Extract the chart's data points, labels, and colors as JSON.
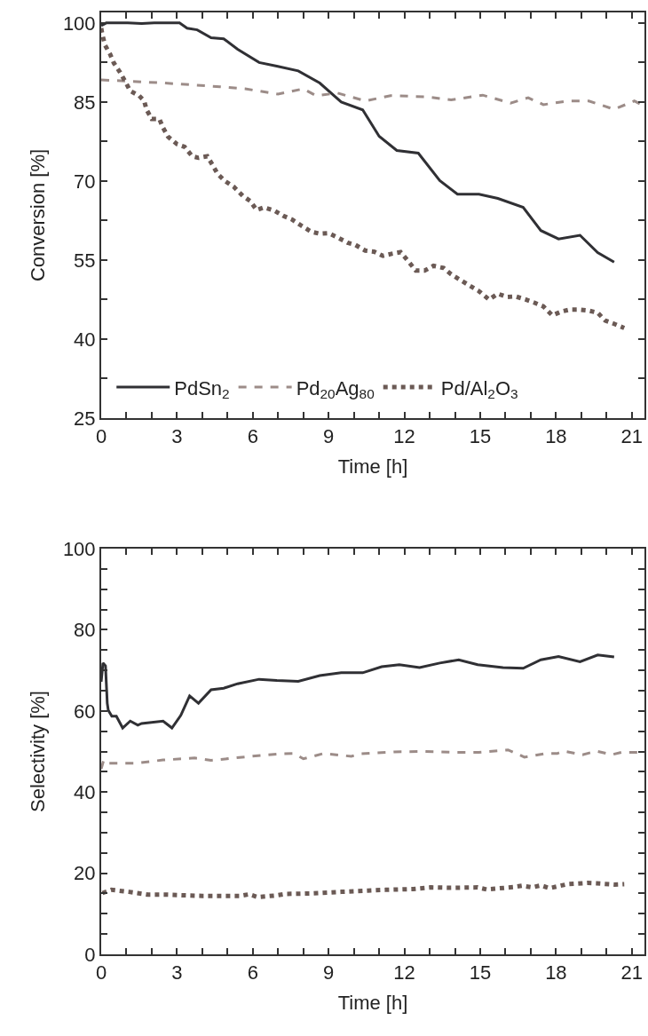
{
  "chart_data": [
    {
      "type": "line",
      "xlabel": "Time [h]",
      "ylabel": "Conversion [%]",
      "xlim": [
        0,
        21.5
      ],
      "ylim": [
        25,
        102
      ],
      "xticks": [
        0,
        {
          "value": 1,
          "label": null
        },
        {
          "value": 2,
          "label": null
        },
        3,
        {
          "value": 4,
          "label": null
        },
        {
          "value": 5,
          "label": null
        },
        6,
        {
          "value": 7,
          "label": null
        },
        {
          "value": 8,
          "label": null
        },
        9,
        {
          "value": 10,
          "label": null
        },
        {
          "value": 11,
          "label": null
        },
        12,
        {
          "value": 13,
          "label": null
        },
        {
          "value": 14,
          "label": null
        },
        15,
        {
          "value": 16,
          "label": null
        },
        {
          "value": 17,
          "label": null
        },
        18,
        {
          "value": 19,
          "label": null
        },
        {
          "value": 20,
          "label": null
        },
        21
      ],
      "yticks": [
        25,
        {
          "value": 32.5,
          "label": null
        },
        40,
        {
          "value": 47.5,
          "label": null
        },
        55,
        {
          "value": 62.5,
          "label": null
        },
        70,
        {
          "value": 77.5,
          "label": null
        },
        85,
        {
          "value": 92.5,
          "label": null
        },
        100
      ],
      "grid": false,
      "legend": "bottom",
      "marker": "none",
      "series": [
        {
          "name": "PdSn$_{2}$",
          "color": "#303034",
          "line_style": "solid",
          "x": [
            0,
            0.2,
            1.05,
            1.6,
            2.1,
            3.1,
            3.4,
            3.8,
            4.35,
            4.85,
            5.4,
            6.25,
            6.95,
            7.8,
            8.65,
            9.5,
            10.35,
            11.0,
            11.7,
            12.55,
            13.4,
            14.1,
            14.95,
            15.7,
            16.7,
            17.4,
            18.1,
            18.95,
            19.65,
            20.3
          ],
          "values": [
            99.5,
            100,
            100,
            99.9,
            100,
            100,
            99,
            98.7,
            97.2,
            97,
            95,
            92.5,
            91.8,
            90.9,
            88.6,
            85,
            83.5,
            78.5,
            75.8,
            75.3,
            70.1,
            67.5,
            67.5,
            66.7,
            65,
            60.6,
            59,
            59.7,
            56.4,
            54.6
          ]
        },
        {
          "name": "Pd$_{20}$Ag$_{80}$",
          "color": "#9c8c88",
          "line_style": "dashed",
          "x": [
            0,
            2.5,
            4.7,
            5.7,
            7,
            8,
            8.5,
            9.35,
            10.45,
            11.45,
            12.85,
            13.85,
            15.1,
            16.2,
            16.9,
            17.5,
            18.5,
            19.3,
            20.3,
            21.1,
            21.5
          ],
          "values": [
            89.2,
            88.6,
            87.9,
            87.5,
            86.5,
            87.5,
            86.2,
            86.7,
            85.2,
            86.2,
            86,
            85.4,
            86.3,
            84.8,
            85.8,
            84.5,
            85.2,
            85.2,
            83.6,
            85.2,
            84.2
          ]
        },
        {
          "name": "Pd/Al$_{2}$O$_{3}$",
          "color": "#6b5a55",
          "line_style": "dotted",
          "x": [
            0,
            0.05,
            0.15,
            0.35,
            0.5,
            0.75,
            0.95,
            1.15,
            1.5,
            1.7,
            1.8,
            2.0,
            2.3,
            2.45,
            2.65,
            3.0,
            3.3,
            3.6,
            3.85,
            4.2,
            4.4,
            4.6,
            4.9,
            5.25,
            5.6,
            5.9,
            6.15,
            6.45,
            6.85,
            7.2,
            7.55,
            7.9,
            8.3,
            8.65,
            9.0,
            9.35,
            9.75,
            10.05,
            10.45,
            10.8,
            11.15,
            11.5,
            11.85,
            12.15,
            12.45,
            12.8,
            13.15,
            13.55,
            13.85,
            14.25,
            14.6,
            14.95,
            15.35,
            15.7,
            16.05,
            16.4,
            16.8,
            17.15,
            17.5,
            17.85,
            18.2,
            18.55,
            18.9,
            19.3,
            19.65,
            19.95,
            20.3,
            20.7
          ],
          "values": [
            99,
            97.7,
            95.8,
            94.1,
            92.4,
            90.6,
            88.9,
            87.1,
            86.2,
            85.2,
            83.5,
            81.8,
            81.8,
            80.1,
            78.4,
            77,
            76.5,
            74.7,
            74.4,
            74.7,
            73.1,
            71.4,
            70,
            68.9,
            67.2,
            66.2,
            64.5,
            65,
            64.4,
            63.4,
            62.7,
            61.6,
            60.4,
            60,
            60.1,
            59.3,
            58.3,
            57.9,
            56.8,
            56.6,
            55.8,
            56.2,
            56.5,
            54.8,
            53,
            53,
            53.9,
            53.5,
            52.3,
            51.1,
            50.1,
            49.1,
            47.5,
            48.6,
            48,
            48.1,
            47.5,
            46.9,
            46.2,
            44.5,
            45.2,
            45.6,
            45.6,
            45.4,
            45,
            43.5,
            42.9,
            42.1
          ]
        }
      ]
    },
    {
      "type": "line",
      "xlabel": "Time [h]",
      "ylabel": "Selectivity [%]",
      "xlim": [
        0,
        21.5
      ],
      "ylim": [
        0,
        100
      ],
      "xticks": [
        0,
        {
          "value": 1,
          "label": null
        },
        {
          "value": 2,
          "label": null
        },
        3,
        {
          "value": 4,
          "label": null
        },
        {
          "value": 5,
          "label": null
        },
        6,
        {
          "value": 7,
          "label": null
        },
        {
          "value": 8,
          "label": null
        },
        9,
        {
          "value": 10,
          "label": null
        },
        {
          "value": 11,
          "label": null
        },
        12,
        {
          "value": 13,
          "label": null
        },
        {
          "value": 14,
          "label": null
        },
        15,
        {
          "value": 16,
          "label": null
        },
        {
          "value": 17,
          "label": null
        },
        18,
        {
          "value": 19,
          "label": null
        },
        {
          "value": 20,
          "label": null
        },
        21
      ],
      "yticks": [
        0,
        {
          "value": 5,
          "label": null
        },
        {
          "value": 10,
          "label": null
        },
        {
          "value": 15,
          "label": null
        },
        20,
        {
          "value": 25,
          "label": null
        },
        {
          "value": 30,
          "label": null
        },
        {
          "value": 35,
          "label": null
        },
        40,
        {
          "value": 45,
          "label": null
        },
        {
          "value": 50,
          "label": null
        },
        {
          "value": 55,
          "label": null
        },
        60,
        {
          "value": 65,
          "label": null
        },
        {
          "value": 70,
          "label": null
        },
        {
          "value": 75,
          "label": null
        },
        80,
        {
          "value": 85,
          "label": null
        },
        {
          "value": 90,
          "label": null
        },
        {
          "value": 95,
          "label": null
        },
        100
      ],
      "grid": false,
      "legend": false,
      "marker": "none",
      "series": [
        {
          "color": "#303034",
          "line_style": "solid",
          "x": [
            0,
            0.07,
            0.17,
            0.24,
            0.28,
            0.42,
            0.6,
            0.85,
            1.15,
            1.45,
            1.6,
            2.45,
            2.8,
            3.15,
            3.5,
            3.85,
            4.35,
            4.85,
            5.4,
            6.25,
            6.95,
            7.8,
            8.65,
            9.5,
            10.35,
            11.1,
            11.8,
            12.6,
            13.4,
            14.15,
            14.9,
            15.9,
            16.7,
            17.4,
            18.1,
            18.95,
            19.65,
            20.3
          ],
          "values": [
            67.2,
            71.8,
            71.1,
            61.9,
            60.2,
            58.7,
            58.7,
            55.8,
            57.5,
            56.5,
            56.9,
            57.5,
            55.8,
            58.9,
            63.7,
            61.9,
            65.2,
            65.6,
            66.7,
            67.8,
            67.5,
            67.3,
            68.7,
            69.4,
            69.4,
            70.9,
            71.4,
            70.7,
            71.8,
            72.6,
            71.4,
            70.7,
            70.5,
            72.6,
            73.4,
            72.1,
            73.8,
            73.3
          ]
        },
        {
          "color": "#9c8c88",
          "line_style": "dashed",
          "x": [
            0,
            0.1,
            0.28,
            1.35,
            2.45,
            3.7,
            4.35,
            5.9,
            7.0,
            7.65,
            8.0,
            8.8,
            9.9,
            10.2,
            11.6,
            12.7,
            13.85,
            14.95,
            16.1,
            16.75,
            17.6,
            18.05,
            18.3,
            19.05,
            19.6,
            20.2,
            20.6,
            21.5
          ],
          "values": [
            45.7,
            47.9,
            47.1,
            47.1,
            47.9,
            48.4,
            47.8,
            48.8,
            49.4,
            49.5,
            48.2,
            49.5,
            48.8,
            49.4,
            49.9,
            50,
            49.8,
            49.8,
            50.4,
            48.6,
            49.5,
            49.5,
            50.1,
            49.2,
            50.1,
            49.2,
            49.8,
            49.8
          ]
        },
        {
          "color": "#6b5a55",
          "line_style": "dotted",
          "x": [
            0.05,
            0.4,
            1.1,
            1.85,
            2.6,
            4.0,
            5.5,
            5.85,
            6.2,
            6.9,
            7.3,
            8.35,
            9.5,
            10.55,
            11.25,
            12.35,
            13.05,
            13.85,
            14.9,
            15.25,
            16.35,
            16.65,
            17.05,
            17.4,
            17.75,
            18.45,
            19.25,
            19.6,
            20.3,
            20.7
          ],
          "values": [
            15.1,
            15.9,
            15.4,
            14.7,
            14.7,
            14.4,
            14.4,
            14.8,
            14.1,
            14.5,
            14.9,
            15,
            15.4,
            15.7,
            15.9,
            16.1,
            16.5,
            16.4,
            16.5,
            16,
            16.6,
            16.9,
            16.5,
            17,
            16.3,
            17.3,
            17.6,
            17.5,
            17.2,
            17.3
          ]
        }
      ]
    }
  ]
}
